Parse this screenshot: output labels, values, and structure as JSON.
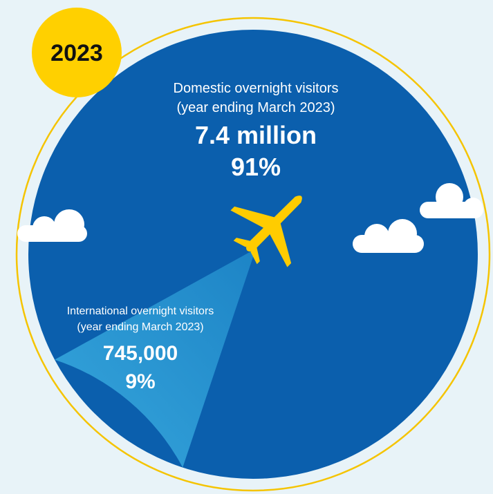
{
  "year_badge": "2023",
  "colors": {
    "background": "#e8f3f8",
    "domestic": "#0b5fad",
    "international": "#2c9ad2",
    "ring": "#f5c400",
    "badge": "#ffd000",
    "plane": "#ffcc00",
    "cloud": "#ffffff",
    "text": "#ffffff",
    "badge_text": "#111111"
  },
  "icons": [
    "plane-icon",
    "cloud-icon"
  ],
  "chart_data": {
    "type": "pie",
    "slices": [
      {
        "key": "domestic",
        "label": "Domestic overnight visitors",
        "period": "(year ending March 2023)",
        "value": 7400000,
        "value_label": "7.4 million",
        "percent": 91,
        "percent_label": "91%"
      },
      {
        "key": "international",
        "label": "International overnight visitors",
        "period": "(year ending March 2023)",
        "value": 745000,
        "value_label": "745,000",
        "percent": 9,
        "percent_label": "9%"
      }
    ]
  }
}
